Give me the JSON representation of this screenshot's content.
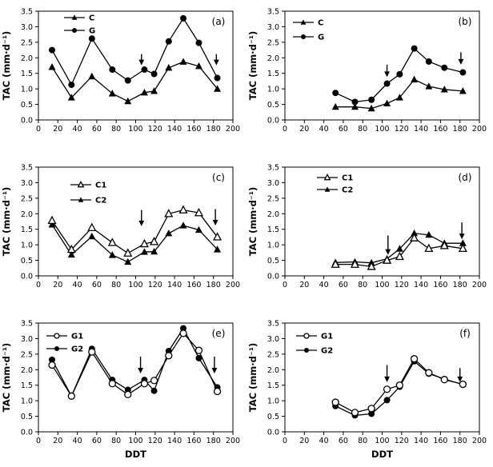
{
  "figure": {
    "background": "#ffffff",
    "foreground": "#000000",
    "ylabel": "TAC (mm·d⁻¹)",
    "xlabel": "DDT"
  },
  "chart_data": [
    {
      "type": "line",
      "panel_label": "(a)",
      "x": [
        14,
        34,
        55,
        76,
        92,
        109,
        119,
        134,
        149,
        165,
        184
      ],
      "series": [
        {
          "name": "C",
          "marker": "triangle-filled",
          "values": [
            1.7,
            0.72,
            1.4,
            0.85,
            0.6,
            0.88,
            0.93,
            1.68,
            1.87,
            1.73,
            1.0
          ]
        },
        {
          "name": "G",
          "marker": "circle-filled",
          "values": [
            2.25,
            1.13,
            2.62,
            1.62,
            1.27,
            1.62,
            1.48,
            2.53,
            3.27,
            2.48,
            1.35
          ]
        }
      ],
      "arrows": [
        {
          "x": 106,
          "from": 2.12,
          "to": 1.76
        },
        {
          "x": 183,
          "from": 2.12,
          "to": 1.76
        }
      ],
      "xlabel": "",
      "ylabel": "TAC (mm·d⁻¹)",
      "xlim": [
        0,
        200
      ],
      "ylim": [
        0,
        3.5
      ],
      "xticks": [
        0,
        20,
        40,
        60,
        80,
        100,
        120,
        140,
        160,
        180,
        200
      ],
      "yticks": [
        0,
        0.5,
        1,
        1.5,
        2,
        2.5,
        3,
        3.5
      ],
      "grid": false,
      "legend_position": "upper-left"
    },
    {
      "type": "line",
      "panel_label": "(b)",
      "x": [
        52,
        72,
        89,
        105,
        118,
        133,
        148,
        164,
        183
      ],
      "series": [
        {
          "name": "C",
          "marker": "triangle-filled",
          "values": [
            0.42,
            0.42,
            0.37,
            0.53,
            0.72,
            1.3,
            1.08,
            0.98,
            0.93
          ]
        },
        {
          "name": "G",
          "marker": "circle-filled",
          "values": [
            0.87,
            0.58,
            0.65,
            1.17,
            1.47,
            2.3,
            1.88,
            1.68,
            1.53
          ]
        }
      ],
      "arrows": [
        {
          "x": 105,
          "from": 1.78,
          "to": 1.38
        },
        {
          "x": 181,
          "from": 2.18,
          "to": 1.78
        }
      ],
      "xlabel": "",
      "ylabel": "TAC (mm·d⁻¹)",
      "xlim": [
        0,
        200
      ],
      "ylim": [
        0,
        3.5
      ],
      "xticks": [
        0,
        20,
        40,
        60,
        80,
        100,
        120,
        140,
        160,
        180,
        200
      ],
      "yticks": [
        0,
        0.5,
        1,
        1.5,
        2,
        2.5,
        3,
        3.5
      ],
      "grid": false,
      "legend_position": "upper-left"
    },
    {
      "type": "line",
      "panel_label": "(c)",
      "x": [
        14,
        34,
        55,
        76,
        92,
        109,
        119,
        134,
        149,
        165,
        184
      ],
      "series": [
        {
          "name": "C1",
          "marker": "triangle-open",
          "values": [
            1.78,
            0.85,
            1.55,
            1.07,
            0.73,
            1.03,
            1.1,
            2.0,
            2.12,
            2.03,
            1.25
          ]
        },
        {
          "name": "C2",
          "marker": "triangle-filled",
          "values": [
            1.65,
            0.68,
            1.27,
            0.67,
            0.45,
            0.77,
            0.78,
            1.37,
            1.62,
            1.48,
            0.85
          ]
        }
      ],
      "arrows": [
        {
          "x": 106,
          "from": 2.12,
          "to": 1.6
        },
        {
          "x": 182,
          "from": 2.15,
          "to": 1.62
        }
      ],
      "xlabel": "",
      "ylabel": "TAC (mm·d⁻¹)",
      "xlim": [
        0,
        200
      ],
      "ylim": [
        0,
        3.5
      ],
      "xticks": [
        0,
        20,
        40,
        60,
        80,
        100,
        120,
        140,
        160,
        180,
        200
      ],
      "yticks": [
        0,
        0.5,
        1,
        1.5,
        2,
        2.5,
        3,
        3.5
      ],
      "grid": false,
      "legend_position": "upper-left"
    },
    {
      "type": "line",
      "panel_label": "(d)",
      "x": [
        52,
        72,
        89,
        105,
        118,
        133,
        148,
        164,
        183
      ],
      "series": [
        {
          "name": "C1",
          "marker": "triangle-open",
          "values": [
            0.37,
            0.37,
            0.3,
            0.5,
            0.62,
            1.22,
            0.88,
            0.97,
            0.88
          ]
        },
        {
          "name": "C2",
          "marker": "triangle-filled",
          "values": [
            0.43,
            0.45,
            0.42,
            0.55,
            0.87,
            1.37,
            1.32,
            1.05,
            1.05
          ]
        }
      ],
      "arrows": [
        {
          "x": 106,
          "from": 1.3,
          "to": 0.68
        },
        {
          "x": 182,
          "from": 1.72,
          "to": 1.18
        }
      ],
      "xlabel": "",
      "ylabel": "TAC (mm·d⁻¹)",
      "xlim": [
        0,
        200
      ],
      "ylim": [
        0,
        3.5
      ],
      "xticks": [
        0,
        20,
        40,
        60,
        80,
        100,
        120,
        140,
        160,
        180,
        200
      ],
      "yticks": [
        0,
        0.5,
        1,
        1.5,
        2,
        2.5,
        3,
        3.5
      ],
      "grid": false,
      "legend_position": "upper-left"
    },
    {
      "type": "line",
      "panel_label": "(e)",
      "x": [
        14,
        34,
        55,
        76,
        92,
        109,
        119,
        134,
        149,
        165,
        184
      ],
      "series": [
        {
          "name": "G1",
          "marker": "circle-open",
          "values": [
            2.15,
            1.15,
            2.57,
            1.55,
            1.2,
            1.55,
            1.65,
            2.45,
            3.17,
            2.62,
            1.3
          ]
        },
        {
          "name": "G2",
          "marker": "circle-filled",
          "values": [
            2.32,
            1.15,
            2.67,
            1.67,
            1.35,
            1.67,
            1.32,
            2.6,
            3.33,
            2.37,
            1.43
          ]
        }
      ],
      "arrows": [
        {
          "x": 105,
          "from": 2.42,
          "to": 1.88
        },
        {
          "x": 181,
          "from": 2.42,
          "to": 1.88
        }
      ],
      "xlabel": "DDT",
      "ylabel": "TAC (mm·d⁻¹)",
      "xlim": [
        0,
        200
      ],
      "ylim": [
        0,
        3.5
      ],
      "xticks": [
        0,
        20,
        40,
        60,
        80,
        100,
        120,
        140,
        160,
        180,
        200
      ],
      "yticks": [
        0,
        0.5,
        1,
        1.5,
        2,
        2.5,
        3,
        3.5
      ],
      "grid": false,
      "legend_position": "upper-left"
    },
    {
      "type": "line",
      "panel_label": "(f)",
      "x": [
        52,
        72,
        89,
        105,
        118,
        133,
        148,
        164,
        183
      ],
      "series": [
        {
          "name": "G1",
          "marker": "circle-open",
          "values": [
            0.95,
            0.62,
            0.75,
            1.37,
            1.5,
            2.35,
            1.9,
            1.68,
            1.53
          ]
        },
        {
          "name": "G2",
          "marker": "circle-filled",
          "values": [
            0.83,
            0.53,
            0.58,
            1.02,
            1.45,
            2.27,
            1.87,
            1.7,
            1.52
          ]
        }
      ],
      "arrows": [
        {
          "x": 105,
          "from": 2.15,
          "to": 1.6
        },
        {
          "x": 180,
          "from": 2.05,
          "to": 1.6
        }
      ],
      "xlabel": "DDT",
      "ylabel": "TAC (mm·d⁻¹)",
      "xlim": [
        0,
        200
      ],
      "ylim": [
        0,
        3.5
      ],
      "xticks": [
        0,
        20,
        40,
        60,
        80,
        100,
        120,
        140,
        160,
        180,
        200
      ],
      "yticks": [
        0,
        0.5,
        1,
        1.5,
        2,
        2.5,
        3,
        3.5
      ],
      "grid": false,
      "legend_position": "upper-left"
    }
  ]
}
